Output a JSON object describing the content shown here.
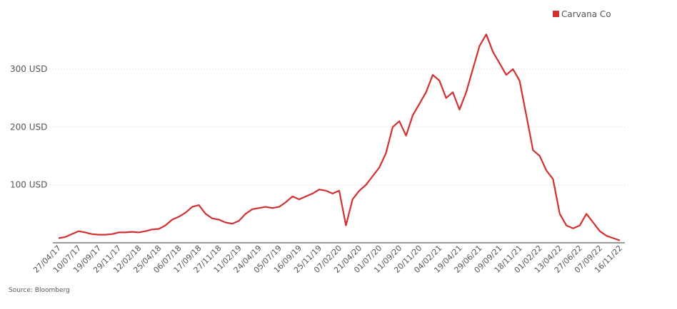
{
  "chart_data": {
    "type": "line",
    "categories": [
      "27/04/17",
      null,
      null,
      "10/07/17",
      null,
      null,
      "19/09/17",
      null,
      null,
      "29/11/17",
      null,
      null,
      "12/02/18",
      null,
      null,
      "25/04/18",
      null,
      null,
      "06/07/18",
      null,
      null,
      "17/09/18",
      null,
      null,
      "27/11/18",
      null,
      null,
      "11/02/19",
      null,
      null,
      "24/04/19",
      null,
      null,
      "05/07/19",
      null,
      null,
      "16/09/19",
      null,
      null,
      "25/11/19",
      null,
      null,
      "07/02/20",
      null,
      null,
      "21/04/20",
      null,
      null,
      "01/07/20",
      null,
      null,
      "11/09/20",
      null,
      null,
      "20/11/20",
      null,
      null,
      "04/02/21",
      null,
      null,
      "19/04/21",
      null,
      null,
      "29/06/21",
      null,
      null,
      "09/09/21",
      null,
      null,
      "18/11/21",
      null,
      null,
      "01/02/22",
      null,
      null,
      "13/04/22",
      null,
      null,
      "27/06/22",
      null,
      null,
      "07/09/22",
      null,
      null,
      "16/11/22"
    ],
    "series": [
      {
        "name": "Carvana Co",
        "color": "#d32f2f",
        "values": [
          8,
          10,
          15,
          20,
          18,
          15,
          14,
          14,
          15,
          18,
          18,
          19,
          18,
          20,
          23,
          24,
          30,
          40,
          45,
          52,
          62,
          65,
          50,
          42,
          40,
          35,
          33,
          38,
          50,
          58,
          60,
          62,
          60,
          62,
          70,
          80,
          75,
          80,
          85,
          92,
          90,
          85,
          90,
          30,
          75,
          90,
          100,
          115,
          130,
          155,
          200,
          210,
          185,
          220,
          240,
          260,
          290,
          280,
          250,
          260,
          230,
          260,
          300,
          340,
          360,
          330,
          310,
          290,
          300,
          280,
          220,
          160,
          150,
          125,
          110,
          50,
          30,
          25,
          30,
          50,
          35,
          20,
          12,
          8,
          4
        ]
      }
    ],
    "ylim": [
      0,
      380
    ],
    "yticks": [
      {
        "value": 100,
        "label": "100 USD"
      },
      {
        "value": 200,
        "label": "200 USD"
      },
      {
        "value": 300,
        "label": "300 USD"
      }
    ],
    "grid": true,
    "legend": "top-right",
    "source": "Source: Bloomberg"
  }
}
